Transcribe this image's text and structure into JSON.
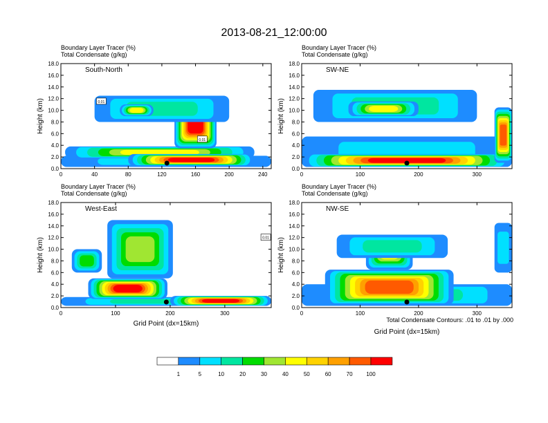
{
  "figure_title": "2013-08-21_12:00:00",
  "panel_subtitle_1": "Boundary Layer Tracer   (%)",
  "panel_subtitle_2": "Total Condensate   (g/kg)",
  "contour_note": "Total Condensate Contours: .01 to .01 by .000",
  "colors": [
    "#ffffff",
    "#1e8cff",
    "#00e0ff",
    "#00e6a0",
    "#00dc00",
    "#a0e632",
    "#ffff00",
    "#ffd200",
    "#ffa000",
    "#ff5a00",
    "#ff0000"
  ],
  "chart_data": [
    {
      "type": "contour-filled",
      "name": "South-North",
      "xlabel": "",
      "ylabel": "Height (km)",
      "xlim": [
        0,
        250
      ],
      "ylim": [
        0,
        18
      ],
      "xticks": [
        0,
        40,
        80,
        120,
        160,
        200,
        240
      ],
      "yticks": [
        0.0,
        2.0,
        4.0,
        6.0,
        8.0,
        10.0,
        12.0,
        14.0,
        16.0,
        18.0
      ],
      "marker_x": 126,
      "contour_labels": [
        {
          "x": 48,
          "y": 11.5,
          "text": "0.01"
        },
        {
          "x": 168,
          "y": 5.0,
          "text": "0.01"
        }
      ],
      "fields": [
        {
          "x": [
            0,
            250
          ],
          "y": [
            0.3,
            2.2
          ],
          "level": 2
        },
        {
          "x": [
            5,
            230
          ],
          "y": [
            1.8,
            3.8
          ],
          "level": 6
        },
        {
          "x": [
            135,
            185
          ],
          "y": [
            3.5,
            11.5
          ],
          "level": 10
        },
        {
          "x": [
            80,
            230
          ],
          "y": [
            0.5,
            2.5
          ],
          "level": 10
        },
        {
          "x": [
            40,
            200
          ],
          "y": [
            8.0,
            12.5
          ],
          "level": 3
        },
        {
          "x": [
            70,
            110
          ],
          "y": [
            9.0,
            11.0
          ],
          "level": 6
        }
      ]
    },
    {
      "type": "contour-filled",
      "name": "SW-NE",
      "xlabel": "",
      "ylabel": "Height (km)",
      "xlim": [
        0,
        360
      ],
      "ylim": [
        0,
        18
      ],
      "xticks": [
        0,
        100,
        200,
        300
      ],
      "yticks": [
        0.0,
        2.0,
        4.0,
        6.0,
        8.0,
        10.0,
        12.0,
        14.0,
        16.0,
        18.0
      ],
      "marker_x": 180,
      "contour_labels": [],
      "fields": [
        {
          "x": [
            0,
            360
          ],
          "y": [
            0.3,
            5.5
          ],
          "level": 2
        },
        {
          "x": [
            0,
            360
          ],
          "y": [
            0.3,
            2.5
          ],
          "level": 10
        },
        {
          "x": [
            20,
            300
          ],
          "y": [
            8.0,
            13.5
          ],
          "level": 3
        },
        {
          "x": [
            80,
            200
          ],
          "y": [
            9.0,
            11.5
          ],
          "level": 6
        },
        {
          "x": [
            330,
            360
          ],
          "y": [
            1.0,
            10.5
          ],
          "level": 9
        }
      ]
    },
    {
      "type": "contour-filled",
      "name": "West-East",
      "xlabel": "Grid Point (dx=15km)",
      "ylabel": "Height (km)",
      "xlim": [
        0,
        385
      ],
      "ylim": [
        0,
        18
      ],
      "xticks": [
        0,
        100,
        200,
        300
      ],
      "yticks": [
        0.0,
        2.0,
        4.0,
        6.0,
        8.0,
        10.0,
        12.0,
        14.0,
        16.0,
        18.0
      ],
      "marker_x": 193,
      "contour_labels": [
        {
          "x": 375,
          "y": 12.0,
          "text": "0.01"
        }
      ],
      "fields": [
        {
          "x": [
            0,
            385
          ],
          "y": [
            0.3,
            1.8
          ],
          "level": 3
        },
        {
          "x": [
            50,
            195
          ],
          "y": [
            1.5,
            5.0
          ],
          "level": 10
        },
        {
          "x": [
            85,
            205
          ],
          "y": [
            5.0,
            15.0
          ],
          "level": 5
        },
        {
          "x": [
            20,
            75
          ],
          "y": [
            6.0,
            10.0
          ],
          "level": 4
        },
        {
          "x": [
            200,
            385
          ],
          "y": [
            0.3,
            2.0
          ],
          "level": 10
        }
      ]
    },
    {
      "type": "contour-filled",
      "name": "NW-SE",
      "xlabel": "Grid Point (dx=15km)",
      "ylabel": "Height (km)",
      "xlim": [
        0,
        360
      ],
      "ylim": [
        0,
        18
      ],
      "xticks": [
        0,
        100,
        200,
        300
      ],
      "yticks": [
        0.0,
        2.0,
        4.0,
        6.0,
        8.0,
        10.0,
        12.0,
        14.0,
        16.0,
        18.0
      ],
      "marker_x": 180,
      "contour_labels": [],
      "fields": [
        {
          "x": [
            0,
            360
          ],
          "y": [
            0.3,
            4.0
          ],
          "level": 3
        },
        {
          "x": [
            40,
            260
          ],
          "y": [
            0.5,
            6.5
          ],
          "level": 9
        },
        {
          "x": [
            110,
            190
          ],
          "y": [
            6.5,
            12.5
          ],
          "level": 6
        },
        {
          "x": [
            60,
            250
          ],
          "y": [
            8.5,
            12.5
          ],
          "level": 3
        },
        {
          "x": [
            330,
            360
          ],
          "y": [
            6.0,
            14.5
          ],
          "level": 2
        }
      ]
    }
  ],
  "colorbar": {
    "labels": [
      "1",
      "5",
      "10",
      "20",
      "30",
      "40",
      "50",
      "60",
      "70",
      "100"
    ],
    "colors": [
      "#ffffff",
      "#1e8cff",
      "#00e0ff",
      "#00e6a0",
      "#00dc00",
      "#a0e632",
      "#ffff00",
      "#ffd200",
      "#ffa000",
      "#ff5a00",
      "#ff0000"
    ]
  }
}
